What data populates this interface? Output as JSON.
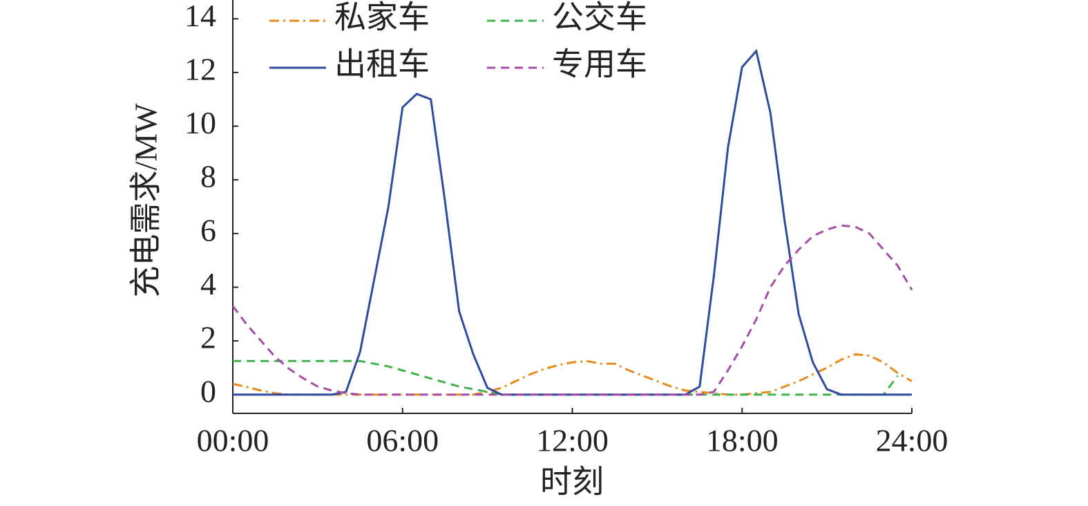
{
  "chart_data": {
    "type": "line",
    "xlabel": "时刻",
    "ylabel": "充电需求/MW",
    "x": [
      0,
      0.5,
      1,
      1.5,
      2,
      2.5,
      3,
      3.5,
      4,
      4.5,
      5,
      5.5,
      6,
      6.5,
      7,
      7.5,
      8,
      8.5,
      9,
      9.5,
      10,
      10.5,
      11,
      11.5,
      12,
      12.5,
      13,
      13.5,
      14,
      14.5,
      15,
      15.5,
      16,
      16.5,
      17,
      17.5,
      18,
      18.5,
      19,
      19.5,
      20,
      20.5,
      21,
      21.5,
      22,
      22.5,
      23,
      23.5,
      24
    ],
    "series": [
      {
        "name": "私家车",
        "color": "#e8891b",
        "dash": "dashdot",
        "values": [
          0.4,
          0.28,
          0.15,
          0.05,
          0,
          0,
          0,
          0,
          0,
          0,
          0,
          0,
          0,
          0,
          0,
          0,
          0,
          0,
          0.1,
          0.25,
          0.5,
          0.75,
          0.95,
          1.1,
          1.2,
          1.25,
          1.15,
          1.15,
          0.9,
          0.7,
          0.5,
          0.3,
          0.15,
          0.1,
          0.05,
          0,
          0,
          0.05,
          0.1,
          0.3,
          0.5,
          0.75,
          1.0,
          1.3,
          1.5,
          1.45,
          1.2,
          0.8,
          0.5
        ]
      },
      {
        "name": "公交车",
        "color": "#3cb44b",
        "dash": "dashed",
        "values": [
          1.25,
          1.25,
          1.25,
          1.25,
          1.25,
          1.25,
          1.25,
          1.25,
          1.25,
          1.25,
          1.15,
          1.05,
          0.9,
          0.75,
          0.6,
          0.45,
          0.3,
          0.2,
          0.1,
          0,
          0,
          0,
          0,
          0,
          0,
          0,
          0,
          0,
          0,
          0,
          0,
          0,
          0,
          0,
          0,
          0,
          0,
          0,
          0,
          0,
          0,
          0,
          0,
          0,
          0,
          0,
          0,
          0.7,
          null
        ]
      },
      {
        "name": "出租车",
        "color": "#2e4a9e",
        "dash": "solid",
        "values": [
          0,
          0,
          0,
          0,
          0,
          0,
          0,
          0,
          0.1,
          1.6,
          4.3,
          7,
          10.7,
          11.2,
          11,
          7.2,
          3.1,
          1.5,
          0.25,
          0,
          0,
          0,
          0,
          0,
          0,
          0,
          0,
          0,
          0,
          0,
          0,
          0,
          0,
          0.3,
          4.4,
          9.2,
          12.2,
          12.8,
          10.5,
          6.5,
          3.0,
          1.2,
          0.2,
          0,
          0,
          0,
          0,
          0,
          0
        ]
      },
      {
        "name": "专用车",
        "color": "#a64ca6",
        "dash": "dashed",
        "values": [
          3.3,
          2.6,
          2.0,
          1.4,
          0.95,
          0.6,
          0.3,
          0.15,
          0.05,
          0,
          0,
          0,
          0,
          0,
          0,
          0,
          0,
          0,
          0,
          0,
          0,
          0,
          0,
          0,
          0,
          0,
          0,
          0,
          0,
          0,
          0,
          0,
          0,
          0,
          0.1,
          0.9,
          1.8,
          2.8,
          4.0,
          4.8,
          5.4,
          5.9,
          6.15,
          6.3,
          6.25,
          6.0,
          5.4,
          4.8,
          3.9
        ]
      }
    ],
    "xlim": [
      0,
      24
    ],
    "xticks": [
      {
        "value": 0,
        "label": "00:00"
      },
      {
        "value": 6,
        "label": "06:00"
      },
      {
        "value": 12,
        "label": "12:00"
      },
      {
        "value": 18,
        "label": "18:00"
      },
      {
        "value": 24,
        "label": "24:00"
      }
    ],
    "ylim": [
      -0.7,
      14.7
    ],
    "yticks": [
      0,
      2,
      4,
      6,
      8,
      10,
      12,
      14
    ]
  }
}
